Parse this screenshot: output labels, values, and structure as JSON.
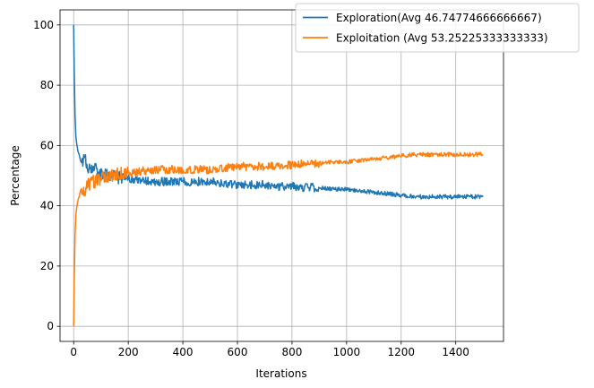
{
  "chart_data": {
    "type": "line",
    "title": "",
    "xlabel": "Iterations",
    "ylabel": "Percentage",
    "xlim": [
      -50,
      1575
    ],
    "ylim": [
      -5,
      105
    ],
    "xticks": [
      0,
      200,
      400,
      600,
      800,
      1000,
      1200,
      1400
    ],
    "yticks": [
      0,
      20,
      40,
      60,
      80,
      100
    ],
    "grid": true,
    "legend_position": "top-right",
    "series": [
      {
        "name": "Exploration(Avg 46.74774666666667)",
        "color": "#1f77b4",
        "x": [
          0,
          2,
          5,
          8,
          12,
          16,
          20,
          25,
          30,
          35,
          40,
          45,
          50,
          60,
          70,
          80,
          90,
          100,
          120,
          140,
          160,
          180,
          200,
          250,
          300,
          350,
          400,
          450,
          500,
          550,
          600,
          650,
          700,
          750,
          800,
          850,
          900,
          950,
          1000,
          1050,
          1100,
          1150,
          1200,
          1250,
          1300,
          1350,
          1400,
          1450,
          1500
        ],
        "y": [
          100,
          85,
          70,
          63,
          60,
          58,
          57,
          55,
          54,
          55,
          56,
          55,
          53,
          53,
          52,
          52,
          51,
          51,
          50,
          50,
          49.5,
          49,
          49,
          48.5,
          48,
          48,
          48,
          48,
          48,
          47.5,
          47,
          47,
          47,
          46.5,
          46.5,
          46,
          46,
          45.5,
          45.5,
          45,
          44.5,
          44,
          43.5,
          43,
          43,
          43,
          43,
          43,
          43
        ]
      },
      {
        "name": "Exploitation (Avg 53.25225333333333)",
        "color": "#ff7f0e",
        "x": [
          0,
          2,
          5,
          8,
          12,
          16,
          20,
          25,
          30,
          35,
          40,
          45,
          50,
          60,
          70,
          80,
          90,
          100,
          120,
          140,
          160,
          180,
          200,
          250,
          300,
          350,
          400,
          450,
          500,
          550,
          600,
          650,
          700,
          750,
          800,
          850,
          900,
          950,
          1000,
          1050,
          1100,
          1150,
          1200,
          1250,
          1300,
          1350,
          1400,
          1450,
          1500
        ],
        "y": [
          0,
          15,
          30,
          37,
          40,
          42,
          43,
          45,
          46,
          45,
          44,
          45,
          47,
          47,
          48,
          48,
          49,
          49,
          50,
          50,
          50.5,
          51,
          51,
          51.5,
          52,
          52,
          52,
          52,
          52,
          52.5,
          53,
          53,
          53,
          53.5,
          53.5,
          54,
          54,
          54.5,
          54.5,
          55,
          55.5,
          56,
          56.5,
          57,
          57,
          57,
          57,
          57,
          57
        ]
      }
    ]
  }
}
